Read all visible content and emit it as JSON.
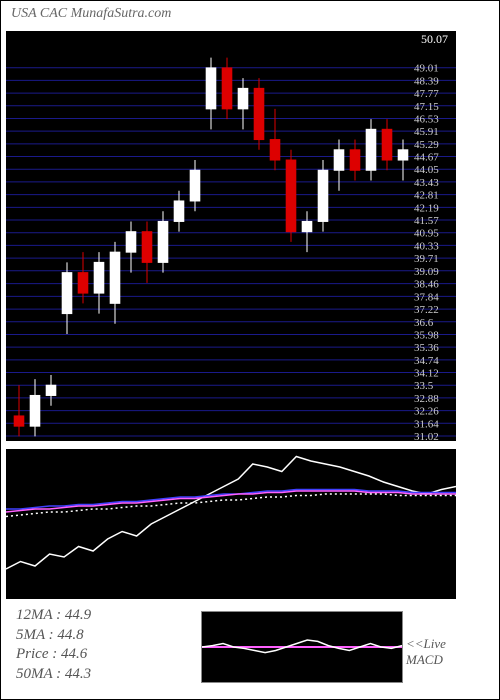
{
  "title": "USA CAC MunafaSutra.com",
  "main_chart": {
    "type": "candlestick",
    "top_label": "50.07",
    "y_axis_labels": [
      "49.01",
      "48.39",
      "47.77",
      "47.15",
      "46.53",
      "45.91",
      "45.29",
      "44.67",
      "44.05",
      "43.43",
      "42.81",
      "42.19",
      "41.57",
      "40.95",
      "40.33",
      "39.71",
      "39.09",
      "38.46",
      "37.84",
      "37.22",
      "36.6",
      "35.98",
      "35.36",
      "34.74",
      "34.12",
      "33.5",
      "32.88",
      "32.26",
      "31.64",
      "31.02"
    ],
    "y_min": 31.02,
    "y_max": 50.07,
    "grid_color": "#1a1a8a",
    "background": "#000000",
    "candle_up_color": "#ffffff",
    "candle_down_color": "#dd0000",
    "candles": [
      {
        "o": 32.0,
        "h": 33.5,
        "l": 31.0,
        "c": 31.5
      },
      {
        "o": 31.5,
        "h": 33.8,
        "l": 31.0,
        "c": 33.0
      },
      {
        "o": 33.0,
        "h": 34.0,
        "l": 32.5,
        "c": 33.5
      },
      {
        "o": 37.0,
        "h": 39.5,
        "l": 36.0,
        "c": 39.0
      },
      {
        "o": 39.0,
        "h": 40.0,
        "l": 37.5,
        "c": 38.0
      },
      {
        "o": 38.0,
        "h": 40.0,
        "l": 37.0,
        "c": 39.5
      },
      {
        "o": 37.5,
        "h": 40.5,
        "l": 36.5,
        "c": 40.0
      },
      {
        "o": 40.0,
        "h": 41.5,
        "l": 39.0,
        "c": 41.0
      },
      {
        "o": 41.0,
        "h": 41.5,
        "l": 38.5,
        "c": 39.5
      },
      {
        "o": 39.5,
        "h": 42.0,
        "l": 39.0,
        "c": 41.5
      },
      {
        "o": 41.5,
        "h": 43.0,
        "l": 41.0,
        "c": 42.5
      },
      {
        "o": 42.5,
        "h": 44.5,
        "l": 42.0,
        "c": 44.0
      },
      {
        "o": 47.0,
        "h": 49.5,
        "l": 46.0,
        "c": 49.0
      },
      {
        "o": 49.0,
        "h": 49.5,
        "l": 46.5,
        "c": 47.0
      },
      {
        "o": 47.0,
        "h": 48.5,
        "l": 46.0,
        "c": 48.0
      },
      {
        "o": 48.0,
        "h": 48.5,
        "l": 45.0,
        "c": 45.5
      },
      {
        "o": 45.5,
        "h": 47.0,
        "l": 44.0,
        "c": 44.5
      },
      {
        "o": 44.5,
        "h": 45.0,
        "l": 40.5,
        "c": 41.0
      },
      {
        "o": 41.0,
        "h": 42.0,
        "l": 40.0,
        "c": 41.5
      },
      {
        "o": 41.5,
        "h": 44.5,
        "l": 41.0,
        "c": 44.0
      },
      {
        "o": 44.0,
        "h": 45.5,
        "l": 43.0,
        "c": 45.0
      },
      {
        "o": 45.0,
        "h": 45.5,
        "l": 43.5,
        "c": 44.0
      },
      {
        "o": 44.0,
        "h": 46.5,
        "l": 43.5,
        "c": 46.0
      },
      {
        "o": 46.0,
        "h": 46.5,
        "l": 44.0,
        "c": 44.5
      },
      {
        "o": 44.5,
        "h": 45.5,
        "l": 43.5,
        "c": 45.0
      }
    ]
  },
  "indicator": {
    "type": "line",
    "background": "#000000",
    "lines": {
      "signal": {
        "color": "#ffffff",
        "width": 2,
        "points": [
          20,
          25,
          22,
          30,
          28,
          35,
          32,
          40,
          45,
          42,
          50,
          55,
          60,
          65,
          70,
          75,
          80,
          90,
          88,
          85,
          95,
          92,
          90,
          88,
          85,
          82,
          78,
          75,
          72,
          70,
          73,
          75
        ]
      },
      "ma_blue": {
        "color": "#4040ff",
        "width": 2,
        "points": [
          60,
          60,
          61,
          62,
          62,
          63,
          63,
          64,
          65,
          65,
          66,
          67,
          68,
          68,
          69,
          70,
          70,
          71,
          72,
          72,
          73,
          73,
          73,
          73,
          73,
          72,
          72,
          72,
          71,
          71,
          71,
          71
        ]
      },
      "ma_pink": {
        "color": "#ff60ff",
        "width": 2,
        "points": [
          58,
          59,
          60,
          60,
          61,
          62,
          62,
          63,
          64,
          64,
          65,
          66,
          67,
          67,
          68,
          69,
          70,
          70,
          71,
          71,
          72,
          72,
          72,
          72,
          72,
          71,
          71,
          71,
          70,
          70,
          70,
          70
        ]
      },
      "ma_dotted": {
        "color": "#ffffff",
        "width": 1,
        "dash": "2,3",
        "points": [
          55,
          56,
          57,
          58,
          58,
          59,
          60,
          60,
          61,
          62,
          62,
          63,
          64,
          64,
          65,
          66,
          66,
          67,
          68,
          68,
          69,
          69,
          70,
          70,
          70,
          70,
          70,
          69,
          69,
          69,
          69,
          69
        ]
      }
    },
    "y_range": [
      0,
      100
    ]
  },
  "stats": {
    "ma12_label": "12MA : ",
    "ma12_value": "44.9",
    "ma5_label": "5MA : ",
    "ma5_value": "44.8",
    "price_label": "Price   : ",
    "price_value": "44.6",
    "ma50_label": "50MA : ",
    "ma50_value": "44.3"
  },
  "macd": {
    "label_line1": "<<Live",
    "label_line2": "MACD",
    "zero_line_color": "#ff60ff",
    "signal_color": "#ffffff",
    "points": [
      50,
      52,
      55,
      50,
      48,
      45,
      42,
      45,
      50,
      55,
      60,
      58,
      52,
      48,
      45,
      50,
      55,
      50,
      48,
      52
    ]
  }
}
